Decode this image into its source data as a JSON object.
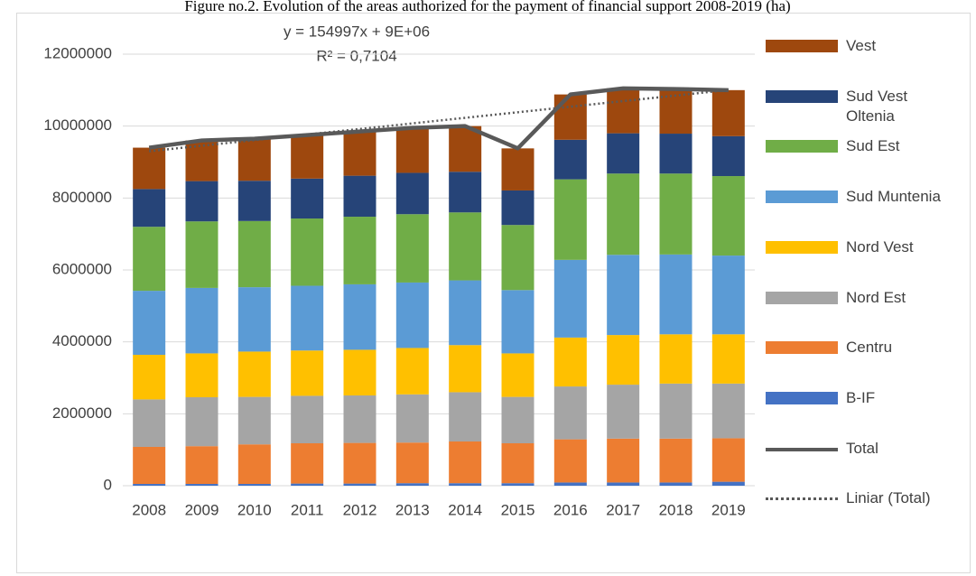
{
  "chart_data": {
    "type": "bar",
    "stacked": true,
    "title": "Figure no.2. Evolution of the areas authorized for the payment of financial support 2008-2019 (ha)",
    "annotations": [
      "y = 154997x + 9E+06",
      "R² = 0,7104"
    ],
    "categories": [
      "2008",
      "2009",
      "2010",
      "2011",
      "2012",
      "2013",
      "2014",
      "2015",
      "2016",
      "2017",
      "2018",
      "2019"
    ],
    "series": [
      {
        "name": "B-IF",
        "color": "#4472c4",
        "values": [
          50000,
          50000,
          50000,
          60000,
          60000,
          70000,
          70000,
          70000,
          90000,
          90000,
          90000,
          110000
        ]
      },
      {
        "name": "Centru",
        "color": "#ed7d31",
        "values": [
          1030000,
          1050000,
          1100000,
          1120000,
          1130000,
          1130000,
          1160000,
          1110000,
          1200000,
          1220000,
          1220000,
          1210000
        ]
      },
      {
        "name": "Nord Est",
        "color": "#a5a5a5",
        "values": [
          1320000,
          1360000,
          1320000,
          1320000,
          1320000,
          1340000,
          1370000,
          1290000,
          1470000,
          1500000,
          1530000,
          1520000
        ]
      },
      {
        "name": "Nord Vest",
        "color": "#ffc000",
        "values": [
          1240000,
          1220000,
          1260000,
          1260000,
          1270000,
          1290000,
          1310000,
          1210000,
          1360000,
          1380000,
          1370000,
          1370000
        ]
      },
      {
        "name": "Sud Muntenia",
        "color": "#5b9bd5",
        "values": [
          1780000,
          1820000,
          1790000,
          1800000,
          1820000,
          1820000,
          1800000,
          1760000,
          2160000,
          2230000,
          2220000,
          2190000
        ]
      },
      {
        "name": "Sud Est",
        "color": "#70ad47",
        "values": [
          1780000,
          1850000,
          1840000,
          1870000,
          1880000,
          1900000,
          1890000,
          1810000,
          2240000,
          2260000,
          2250000,
          2210000
        ]
      },
      {
        "name": "Sud Vest Oltenia",
        "color": "#264478",
        "values": [
          1050000,
          1120000,
          1120000,
          1110000,
          1140000,
          1150000,
          1130000,
          960000,
          1100000,
          1120000,
          1110000,
          1110000
        ]
      },
      {
        "name": "Vest",
        "color": "#9e480e",
        "values": [
          1150000,
          1130000,
          1170000,
          1210000,
          1230000,
          1250000,
          1270000,
          1170000,
          1260000,
          1250000,
          1240000,
          1280000
        ]
      }
    ],
    "lines": [
      {
        "name": "Total",
        "color": "#595959",
        "style": "solid",
        "values": [
          9400000,
          9600000,
          9650000,
          9750000,
          9850000,
          9950000,
          10000000,
          9380000,
          10880000,
          11050000,
          11030000,
          11000000
        ]
      },
      {
        "name": "Liniar (Total)",
        "color": "#595959",
        "style": "dotted",
        "values": [
          9300000,
          9455000,
          9610000,
          9765000,
          9920000,
          10075000,
          10230000,
          10385000,
          10540000,
          10695000,
          10850000,
          11005000
        ]
      }
    ],
    "ylim": [
      0,
      12000000
    ],
    "yticks": [
      0,
      2000000,
      4000000,
      6000000,
      8000000,
      10000000,
      12000000
    ],
    "grid": true,
    "legend": "right"
  }
}
